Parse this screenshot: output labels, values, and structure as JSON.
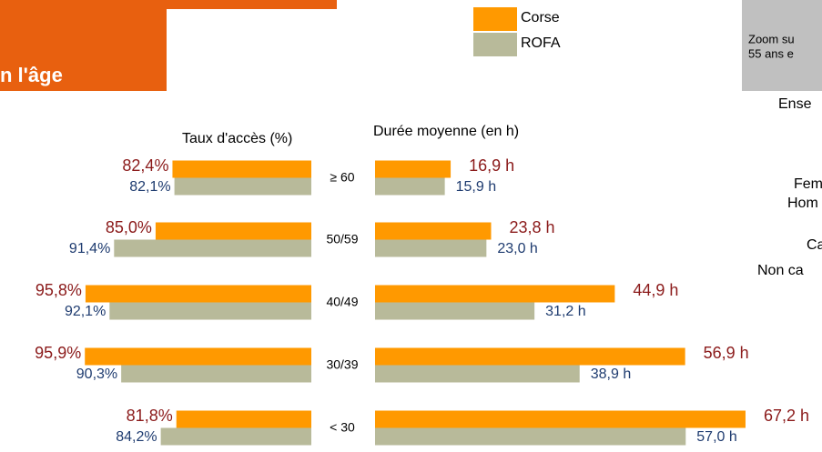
{
  "header": {
    "title": "n l'âge"
  },
  "side_panel": {
    "zoom_lines": [
      "Zoom su",
      "55 ans e"
    ],
    "items": [
      "Ense",
      "Fem",
      "Hom",
      "Ca",
      "Non ca"
    ]
  },
  "chart_data": [
    {
      "type": "bar",
      "orientation": "horizontal",
      "direction": "left",
      "title": "Taux d'accès (%)",
      "categories": [
        "≥ 60",
        "50/59",
        "40/49",
        "30/39",
        "< 30"
      ],
      "xlim": [
        61,
        100
      ],
      "series": [
        {
          "name": "Corse",
          "color": "#ff9900",
          "values": [
            82.4,
            85.0,
            95.8,
            95.9,
            81.8
          ],
          "value_labels": [
            "82,4%",
            "85,0%",
            "95,8%",
            "95,9%",
            "81,8%"
          ],
          "label_color": "#8b1a1a"
        },
        {
          "name": "ROFA",
          "color": "#b8ba9a",
          "values": [
            82.1,
            91.4,
            92.1,
            90.3,
            84.2
          ],
          "value_labels": [
            "82,1%",
            "91,4%",
            "92,1%",
            "90,3%",
            "84,2%"
          ],
          "label_color": "#1f3c70"
        }
      ]
    },
    {
      "type": "bar",
      "orientation": "horizontal",
      "direction": "right",
      "title": "Durée moyenne (en h)",
      "xlim": [
        4,
        70
      ],
      "series": [
        {
          "color": "#ff9900",
          "values": [
            16.9,
            23.8,
            44.9,
            56.9,
            67.2
          ],
          "value_labels": [
            "16,9 h",
            "23,8 h",
            "44,9 h",
            "56,9 h",
            "67,2 h"
          ],
          "label_color": "#8b1a1a"
        },
        {
          "color": "#b8ba9a",
          "values": [
            15.9,
            23.0,
            31.2,
            38.9,
            57.0
          ],
          "value_labels": [
            "15,9 h",
            "23,0 h",
            "31,2 h",
            "38,9 h",
            "57,0 h"
          ],
          "label_color": "#1f3c70"
        }
      ]
    }
  ]
}
